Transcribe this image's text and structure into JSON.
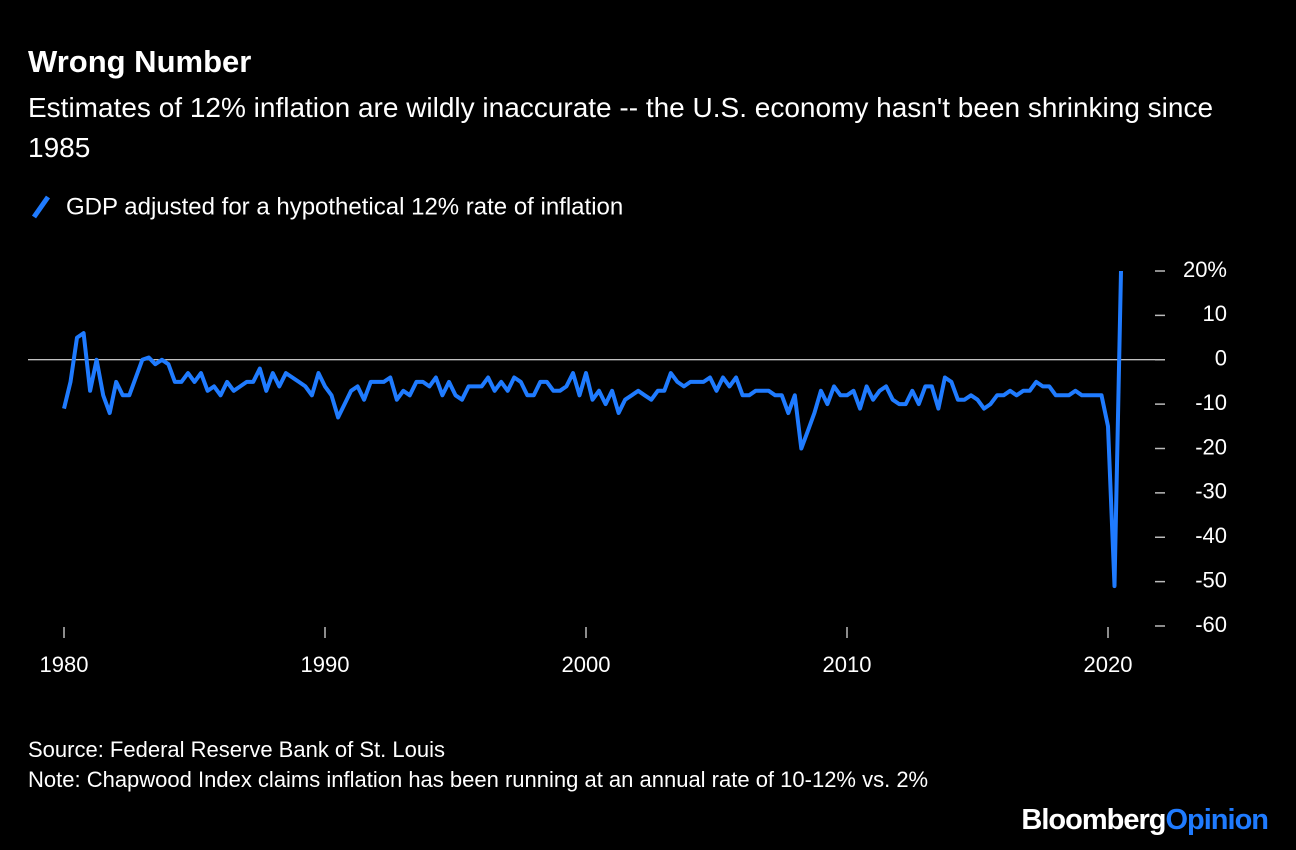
{
  "chart_data": {
    "type": "line",
    "title": "Wrong Number",
    "subtitle": "Estimates of 12% inflation are wildly inaccurate -- the U.S. economy hasn't been shrinking since 1985",
    "source": "Source: Federal Reserve Bank of St. Louis",
    "note": "Note: Chapwood Index claims inflation has been running at an annual rate of 10-12% vs. 2%",
    "brand": [
      "Bloomberg",
      "Opinion"
    ],
    "x": [
      1980,
      1980.25,
      1980.5,
      1980.75,
      1981,
      1981.25,
      1981.5,
      1981.75,
      1982,
      1982.25,
      1982.5,
      1982.75,
      1983,
      1983.25,
      1983.5,
      1983.75,
      1984,
      1984.25,
      1984.5,
      1984.75,
      1985,
      1985.25,
      1985.5,
      1985.75,
      1986,
      1986.25,
      1986.5,
      1986.75,
      1987,
      1987.25,
      1987.5,
      1987.75,
      1988,
      1988.25,
      1988.5,
      1988.75,
      1989,
      1989.25,
      1989.5,
      1989.75,
      1990,
      1990.25,
      1990.5,
      1990.75,
      1991,
      1991.25,
      1991.5,
      1991.75,
      1992,
      1992.25,
      1992.5,
      1992.75,
      1993,
      1993.25,
      1993.5,
      1993.75,
      1994,
      1994.25,
      1994.5,
      1994.75,
      1995,
      1995.25,
      1995.5,
      1995.75,
      1996,
      1996.25,
      1996.5,
      1996.75,
      1997,
      1997.25,
      1997.5,
      1997.75,
      1998,
      1998.25,
      1998.5,
      1998.75,
      1999,
      1999.25,
      1999.5,
      1999.75,
      2000,
      2000.25,
      2000.5,
      2000.75,
      2001,
      2001.25,
      2001.5,
      2001.75,
      2002,
      2002.25,
      2002.5,
      2002.75,
      2003,
      2003.25,
      2003.5,
      2003.75,
      2004,
      2004.25,
      2004.5,
      2004.75,
      2005,
      2005.25,
      2005.5,
      2005.75,
      2006,
      2006.25,
      2006.5,
      2006.75,
      2007,
      2007.25,
      2007.5,
      2007.75,
      2008,
      2008.25,
      2008.5,
      2008.75,
      2009,
      2009.25,
      2009.5,
      2009.75,
      2010,
      2010.25,
      2010.5,
      2010.75,
      2011,
      2011.25,
      2011.5,
      2011.75,
      2012,
      2012.25,
      2012.5,
      2012.75,
      2013,
      2013.25,
      2013.5,
      2013.75,
      2014,
      2014.25,
      2014.5,
      2014.75,
      2015,
      2015.25,
      2015.5,
      2015.75,
      2016,
      2016.25,
      2016.5,
      2016.75,
      2017,
      2017.25,
      2017.5,
      2017.75,
      2018,
      2018.25,
      2018.5,
      2018.75,
      2019,
      2019.25,
      2019.5,
      2019.75,
      2020,
      2020.25,
      2020.5
    ],
    "series": [
      {
        "name": "GDP adjusted for a hypothetical 12% rate of inflation",
        "color": "#1f7bff",
        "values": [
          -11,
          -5,
          5,
          6,
          -7,
          0,
          -8,
          -12,
          -5,
          -8,
          -8,
          -4,
          0,
          0.5,
          -1,
          0,
          -1,
          -5,
          -5,
          -3,
          -5,
          -3,
          -7,
          -6,
          -8,
          -5,
          -7,
          -6,
          -5,
          -5,
          -2,
          -7,
          -3,
          -6,
          -3,
          -4,
          -5,
          -6,
          -8,
          -3,
          -6,
          -8,
          -13,
          -10,
          -7,
          -6,
          -9,
          -5,
          -5,
          -5,
          -4,
          -9,
          -7,
          -8,
          -5,
          -5,
          -6,
          -4,
          -8,
          -5,
          -8,
          -9,
          -6,
          -6,
          -6,
          -4,
          -7,
          -5,
          -7,
          -4,
          -5,
          -8,
          -8,
          -5,
          -5,
          -7,
          -7,
          -6,
          -3,
          -8,
          -3,
          -9,
          -7,
          -10,
          -7,
          -12,
          -9,
          -8,
          -7,
          -8,
          -9,
          -7,
          -7,
          -3,
          -5,
          -6,
          -5,
          -5,
          -5,
          -4,
          -7,
          -4,
          -6,
          -4,
          -8,
          -8,
          -7,
          -7,
          -7,
          -8,
          -8,
          -12,
          -8,
          -20,
          -16,
          -12,
          -7,
          -10,
          -6,
          -8,
          -8,
          -7,
          -11,
          -6,
          -9,
          -7,
          -6,
          -9,
          -10,
          -10,
          -7,
          -10,
          -6,
          -6,
          -11,
          -4,
          -5,
          -9,
          -9,
          -8,
          -9,
          -11,
          -10,
          -8,
          -8,
          -7,
          -8,
          -7,
          -7,
          -5,
          -6,
          -6,
          -8,
          -8,
          -8,
          -7,
          -8,
          -8,
          -8,
          -8,
          -15,
          -51,
          20
        ]
      }
    ],
    "xlim": [
      1980,
      2020
    ],
    "xticks": [
      1980,
      1990,
      2000,
      2010,
      2020
    ],
    "ylim": [
      -60,
      20
    ],
    "yticks": [
      {
        "value": 20,
        "label": "20%"
      },
      10,
      0,
      -10,
      -20,
      -30,
      -40,
      -50,
      -60
    ]
  }
}
